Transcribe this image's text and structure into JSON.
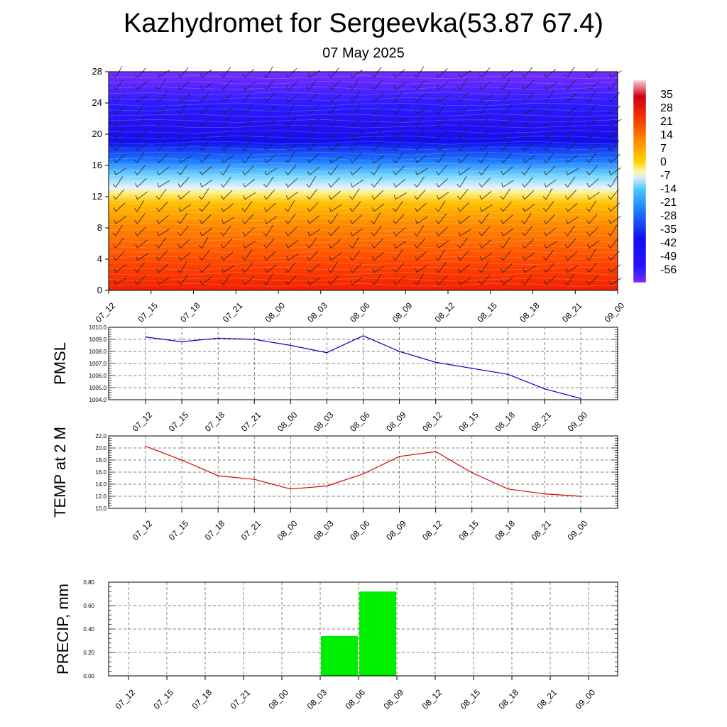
{
  "title": "Kazhydromet for Sergeevka(53.87 67.4)",
  "subtitle": "07 May 2025",
  "colors": {
    "pmsl_line": "#0000cc",
    "temp_line": "#dd0000",
    "precip_bar": "#00ee00",
    "grid": "#555555"
  },
  "chart_data": [
    {
      "id": "profile",
      "type": "heatmap",
      "categories": [
        "07_12",
        "07_15",
        "07_18",
        "07_21",
        "08_00",
        "08_03",
        "08_06",
        "08_09",
        "08_12",
        "08_15",
        "08_18",
        "08_21",
        "09_00"
      ],
      "ylabel": "",
      "ylim": [
        0,
        28
      ],
      "yticks": [
        "0",
        "4",
        "8",
        "12",
        "16",
        "20",
        "24",
        "28"
      ],
      "colorbar_ticks": [
        "35",
        "28",
        "21",
        "14",
        "7",
        "0",
        "-7",
        "-14",
        "-21",
        "-28",
        "-35",
        "-42",
        "-49",
        "-56"
      ],
      "colorbar_range": [
        -63,
        42
      ],
      "wind_barbs": true
    },
    {
      "id": "pmsl",
      "type": "line",
      "ylabel": "PMSL",
      "categories": [
        "07_12",
        "07_15",
        "07_18",
        "07_21",
        "08_00",
        "08_03",
        "08_06",
        "08_09",
        "08_12",
        "08_15",
        "08_18",
        "08_21",
        "09_00"
      ],
      "values": [
        1009.2,
        1008.8,
        1009.1,
        1009.0,
        1008.5,
        1007.9,
        1009.3,
        1008.0,
        1007.1,
        1006.6,
        1006.1,
        1004.9,
        1004.1
      ],
      "ylim": [
        1004.0,
        1010.0
      ],
      "yticks": [
        "1004.0",
        "1005.0",
        "1006.0",
        "1007.0",
        "1008.0",
        "1009.0",
        "1010.0"
      ],
      "grid": true
    },
    {
      "id": "temp",
      "type": "line",
      "ylabel": "TEMP at 2 M",
      "categories": [
        "07_12",
        "07_15",
        "07_18",
        "07_21",
        "08_00",
        "08_03",
        "08_06",
        "08_09",
        "08_12",
        "08_15",
        "08_18",
        "08_21",
        "09_00"
      ],
      "values": [
        20.3,
        18.0,
        15.4,
        14.8,
        13.2,
        13.7,
        15.7,
        18.6,
        19.4,
        15.9,
        13.2,
        12.4,
        12.0
      ],
      "ylim": [
        10.0,
        22.0
      ],
      "yticks": [
        "10.0",
        "12.0",
        "14.0",
        "16.0",
        "18.0",
        "20.0",
        "22.0"
      ],
      "grid": true
    },
    {
      "id": "precip",
      "type": "bar",
      "ylabel": "PRECIP, mm",
      "categories": [
        "07_12",
        "07_15",
        "07_18",
        "07_21",
        "08_00",
        "08_03",
        "08_06",
        "08_09",
        "08_12",
        "08_15",
        "08_18",
        "08_21",
        "09_00"
      ],
      "values": [
        0,
        0,
        0,
        0,
        0,
        0,
        0.34,
        0.72,
        0,
        0,
        0,
        0,
        0
      ],
      "ylim": [
        0,
        0.8
      ],
      "yticks": [
        "0.00",
        "0.20",
        "0.40",
        "0.60",
        "0.80"
      ],
      "grid": true
    }
  ]
}
